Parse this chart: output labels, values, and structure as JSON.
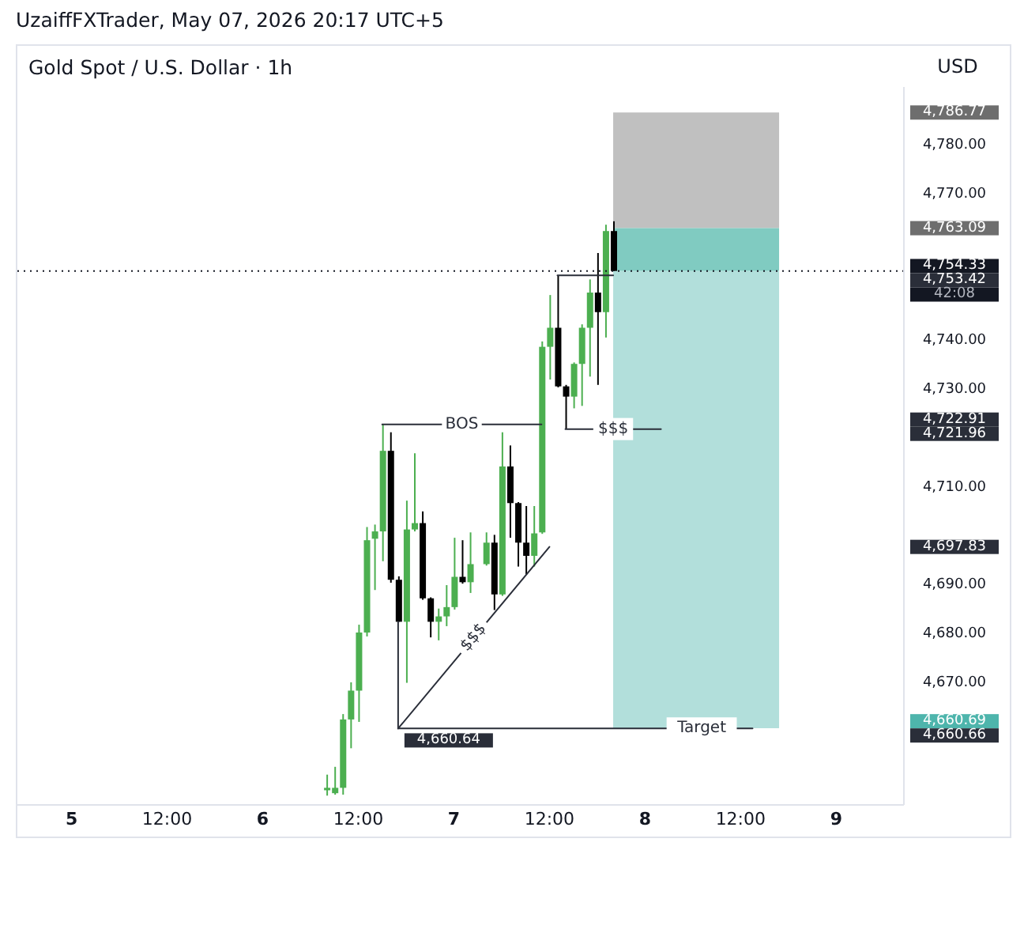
{
  "chart_data": {
    "type": "candlestick",
    "title": "Gold Spot / U.S. Dollar · 1h",
    "ylabel": "USD",
    "annotations": [
      "UzaiffFXTrader, May 07, 2026 20:17 UTC+5",
      "42:08",
      {
        "text": "4,660.64",
        "x": "2026-05-06T17:00",
        "y": 4660.64
      }
    ],
    "x": [
      "2026-05-06T08:00",
      "2026-05-06T09:00",
      "2026-05-06T10:00",
      "2026-05-06T11:00",
      "2026-05-06T12:00",
      "2026-05-06T13:00",
      "2026-05-06T14:00",
      "2026-05-06T15:00",
      "2026-05-06T16:00",
      "2026-05-06T17:00",
      "2026-05-06T18:00",
      "2026-05-06T19:00",
      "2026-05-06T20:00",
      "2026-05-06T21:00",
      "2026-05-06T22:00",
      "2026-05-06T23:00",
      "2026-05-07T00:00",
      "2026-05-07T01:00",
      "2026-05-07T02:00",
      "2026-05-07T04:00",
      "2026-05-07T05:00",
      "2026-05-07T06:00",
      "2026-05-07T07:00",
      "2026-05-07T08:00",
      "2026-05-07T09:00",
      "2026-05-07T10:00",
      "2026-05-07T11:00",
      "2026-05-07T12:00",
      "2026-05-07T13:00",
      "2026-05-07T14:00",
      "2026-05-07T15:00",
      "2026-05-07T16:00",
      "2026-05-07T17:00",
      "2026-05-07T18:00",
      "2026-05-07T19:00",
      "2026-05-07T20:00"
    ],
    "ohlc": [
      [
        4648.0,
        4651.2,
        4646.9,
        4648.5
      ],
      [
        4647.4,
        4652.8,
        4647.1,
        4648.5
      ],
      [
        4648.5,
        4663.6,
        4647.1,
        4662.5
      ],
      [
        4662.5,
        4670.1,
        4656.6,
        4668.4
      ],
      [
        4668.4,
        4681.9,
        4662.0,
        4680.3
      ],
      [
        4680.3,
        4701.9,
        4679.5,
        4699.2
      ],
      [
        4699.5,
        4702.4,
        4689.0,
        4701.0
      ],
      [
        4701.0,
        4722.91,
        4694.9,
        4717.5
      ],
      [
        4717.5,
        4721.3,
        4690.5,
        4691.1
      ],
      [
        4691.1,
        4691.8,
        4682.5,
        4682.5
      ],
      [
        4682.5,
        4707.3,
        4670.0,
        4701.4
      ],
      [
        4701.4,
        4717.0,
        4701.0,
        4702.7
      ],
      [
        4702.7,
        4705.1,
        4687.0,
        4687.3
      ],
      [
        4687.3,
        4687.5,
        4679.3,
        4682.5
      ],
      [
        4682.5,
        4685.2,
        4678.7,
        4683.6
      ],
      [
        4683.6,
        4690.0,
        4681.6,
        4685.5
      ],
      [
        4685.5,
        4699.7,
        4685.0,
        4691.7
      ],
      [
        4691.7,
        4699.2,
        4690.3,
        4690.6
      ],
      [
        4690.6,
        4700.8,
        4688.4,
        4694.3
      ],
      [
        4694.3,
        4700.8,
        4694.0,
        4698.7
      ],
      [
        4698.7,
        4700.3,
        4684.9,
        4688.1
      ],
      [
        4688.1,
        4721.3,
        4687.8,
        4714.3
      ],
      [
        4714.3,
        4718.6,
        4699.7,
        4706.8
      ],
      [
        4706.8,
        4707.0,
        4693.8,
        4698.7
      ],
      [
        4698.7,
        4706.2,
        4692.2,
        4696.0
      ],
      [
        4696.0,
        4706.2,
        4693.8,
        4700.6
      ],
      [
        4700.8,
        4739.9,
        4700.5,
        4738.8
      ],
      [
        4738.8,
        4749.4,
        4732.1,
        4742.7
      ],
      [
        4742.7,
        4753.42,
        4730.5,
        4730.7
      ],
      [
        4730.7,
        4731.0,
        4721.96,
        4728.6
      ],
      [
        4728.6,
        4735.6,
        4726.2,
        4735.3
      ],
      [
        4735.3,
        4743.4,
        4726.7,
        4742.7
      ],
      [
        4742.7,
        4752.6,
        4732.7,
        4749.9
      ],
      [
        4749.9,
        4758.0,
        4731.0,
        4745.9
      ],
      [
        4745.9,
        4763.8,
        4740.7,
        4762.5
      ],
      [
        4762.5,
        4764.5,
        4754.33,
        4754.33
      ]
    ],
    "colors": [
      "#4caf50",
      "#4caf50",
      "#4caf50",
      "#4caf50",
      "#4caf50",
      "#4caf50",
      "#4caf50",
      "#4caf50",
      "#000000",
      "#000000",
      "#4caf50",
      "#4caf50",
      "#000000",
      "#000000",
      "#4caf50",
      "#4caf50",
      "#4caf50",
      "#000000",
      "#4caf50",
      "#4caf50",
      "#000000",
      "#4caf50",
      "#000000",
      "#000000",
      "#000000",
      "#4caf50",
      "#4caf50",
      "#4caf50",
      "#000000",
      "#000000",
      "#4caf50",
      "#4caf50",
      "#4caf50",
      "#000000",
      "#4caf50",
      "#000000"
    ],
    "series": [
      {
        "type": "line",
        "name": "BOS",
        "color": "#2a2e39",
        "x": [
          "2026-05-06T15:00",
          "2026-05-07T11:00"
        ],
        "values": [
          4722.91,
          4722.91
        ]
      },
      {
        "type": "line",
        "name": "$$$",
        "color": "#2a2e39",
        "x": [
          "2026-05-07T14:00",
          "2026-05-08T02:00"
        ],
        "values": [
          4721.96,
          4721.96
        ]
      },
      {
        "type": "line",
        "color": "#2a2e39",
        "x": [
          "2026-05-07T13:00",
          "2026-05-07T20:00"
        ],
        "values": [
          4753.42,
          4753.42
        ]
      },
      {
        "type": "line",
        "name": "Target",
        "color": "#2a2e39",
        "x": [
          "2026-05-06T17:00",
          "2026-05-06T17:00",
          "2026-05-08T13:30"
        ],
        "values": [
          4682.5,
          4660.66,
          4660.66
        ]
      },
      {
        "type": "line",
        "name": "$$$",
        "color": "#2a2e39",
        "x": [
          "2026-05-06T17:00",
          "2026-05-07T12:00"
        ],
        "values": [
          4660.64,
          4697.83
        ]
      }
    ],
    "bands": [
      {
        "axis": "y",
        "from": 4763.09,
        "to": 4786.77,
        "color": "#c0c0c0"
      },
      {
        "axis": "y",
        "from": 4754.33,
        "to": 4763.09,
        "color": "#80cbc1"
      },
      {
        "axis": "y",
        "from": 4660.69,
        "to": 4754.33,
        "color": "#b2dfdb"
      }
    ],
    "ref_lines": [
      {
        "axis": "y",
        "value": 4754.33,
        "color": "#131722",
        "line_style": "dotted"
      }
    ],
    "xlim": [
      "2026-05-04T17:00",
      "2026-05-09T08:30"
    ],
    "xticks": [
      {
        "value": "2026-05-05T00:00",
        "label": "5"
      },
      {
        "value": "2026-05-05T12:00",
        "label": "12:00"
      },
      {
        "value": "2026-05-06T00:00",
        "label": "6"
      },
      {
        "value": "2026-05-06T12:00",
        "label": "12:00"
      },
      {
        "value": "2026-05-07T00:00",
        "label": "7"
      },
      {
        "value": "2026-05-07T12:00",
        "label": "12:00"
      },
      {
        "value": "2026-05-08T00:00",
        "label": "8"
      },
      {
        "value": "2026-05-08T12:00",
        "label": "12:00"
      },
      {
        "value": "2026-05-09T00:00",
        "label": "9"
      }
    ],
    "ylim": [
      4645,
      4792
    ],
    "yticks": [
      {
        "value": 4786.77,
        "label": "4,786.77"
      },
      {
        "value": 4780,
        "label": "4,780.00"
      },
      {
        "value": 4770,
        "label": "4,770.00"
      },
      {
        "value": 4763.09,
        "label": "4,763.09"
      },
      {
        "value": 4754.33,
        "label": "4,754.33"
      },
      {
        "value": 4753.42,
        "label": "4,753.42"
      },
      {
        "value": 4740,
        "label": "4,740.00"
      },
      {
        "value": 4730,
        "label": "4,730.00"
      },
      {
        "value": 4722.91,
        "label": "4,722.91"
      },
      {
        "value": 4721.96,
        "label": "4,721.96"
      },
      {
        "value": 4710,
        "label": "4,710.00"
      },
      {
        "value": 4697.83,
        "label": "4,697.83"
      },
      {
        "value": 4690,
        "label": "4,690.00"
      },
      {
        "value": 4680,
        "label": "4,680.00"
      },
      {
        "value": 4670,
        "label": "4,670.00"
      },
      {
        "value": 4660.69,
        "label": "4,660.69"
      },
      {
        "value": 4660.66,
        "label": "4,660.66"
      }
    ]
  }
}
